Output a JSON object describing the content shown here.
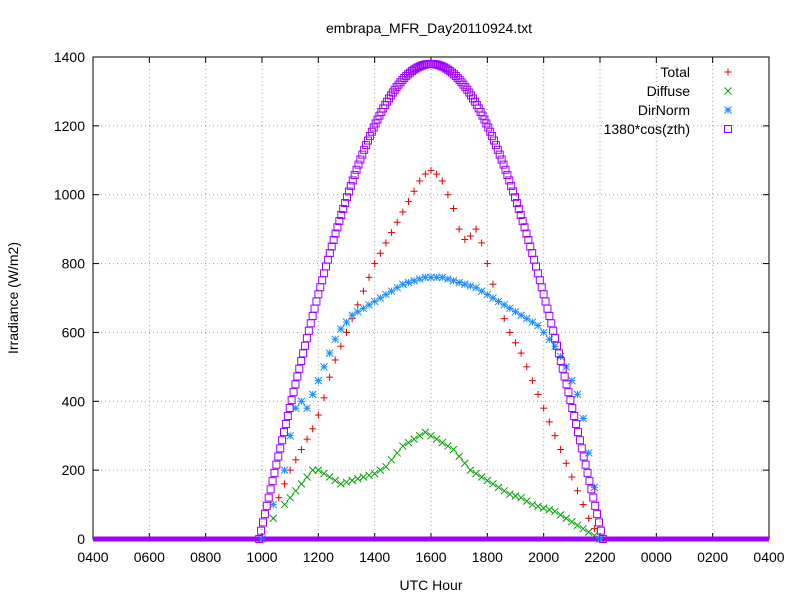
{
  "chart_data": {
    "type": "scatter",
    "title": "embrapa_MFR_Day20110924.txt",
    "xlabel": "UTC Hour",
    "ylabel": "Irradiance (W/m2)",
    "ylim": [
      0,
      1400
    ],
    "y_ticks": [
      0,
      200,
      400,
      600,
      800,
      1000,
      1200,
      1400
    ],
    "y_tick_labels": [
      "0",
      "200",
      "400",
      "600",
      "800",
      "1000",
      "1200",
      "1400"
    ],
    "x_ticks": [
      4,
      6,
      8,
      10,
      12,
      14,
      16,
      18,
      20,
      22,
      24,
      26,
      28
    ],
    "x_tick_labels": [
      "0400",
      "0600",
      "0800",
      "1000",
      "1200",
      "1400",
      "1600",
      "1800",
      "2000",
      "2200",
      "0000",
      "0200",
      "0400"
    ],
    "xlim": [
      4,
      28
    ],
    "grid": true,
    "legend_position": "top-right",
    "series": [
      {
        "name": "Total",
        "marker": "plus",
        "color": "#e00000",
        "x": [
          10.0,
          10.6,
          10.8,
          11.0,
          11.2,
          11.4,
          11.6,
          11.8,
          12.0,
          12.2,
          12.4,
          12.6,
          12.8,
          13.0,
          13.2,
          13.4,
          13.6,
          13.8,
          14.0,
          14.2,
          14.4,
          14.6,
          14.8,
          15.0,
          15.2,
          15.4,
          15.6,
          15.8,
          16.0,
          16.2,
          16.4,
          16.6,
          16.8,
          17.0,
          17.2,
          17.4,
          17.6,
          17.8,
          18.0,
          18.2,
          18.4,
          18.6,
          18.8,
          19.0,
          19.2,
          19.4,
          19.6,
          19.8,
          20.0,
          20.2,
          20.4,
          20.6,
          20.8,
          21.0,
          21.2,
          21.4,
          21.6,
          21.8,
          22.0
        ],
        "y": [
          0,
          120,
          160,
          200,
          230,
          260,
          290,
          320,
          360,
          410,
          470,
          520,
          560,
          600,
          640,
          680,
          720,
          760,
          800,
          830,
          860,
          890,
          920,
          950,
          980,
          1010,
          1040,
          1060,
          1070,
          1060,
          1040,
          1000,
          960,
          900,
          870,
          880,
          900,
          860,
          800,
          740,
          690,
          640,
          600,
          570,
          540,
          500,
          460,
          420,
          380,
          340,
          300,
          260,
          220,
          180,
          140,
          100,
          60,
          30,
          0
        ]
      },
      {
        "name": "Diffuse",
        "marker": "cross",
        "color": "#00a000",
        "x": [
          10.0,
          10.4,
          10.8,
          11.0,
          11.2,
          11.4,
          11.6,
          11.8,
          12.0,
          12.2,
          12.4,
          12.6,
          12.8,
          13.0,
          13.2,
          13.4,
          13.6,
          13.8,
          14.0,
          14.2,
          14.4,
          14.6,
          14.8,
          15.0,
          15.2,
          15.4,
          15.6,
          15.8,
          16.0,
          16.2,
          16.4,
          16.6,
          16.8,
          17.0,
          17.2,
          17.4,
          17.6,
          17.8,
          18.0,
          18.2,
          18.4,
          18.6,
          18.8,
          19.0,
          19.2,
          19.4,
          19.6,
          19.8,
          20.0,
          20.2,
          20.4,
          20.6,
          20.8,
          21.0,
          21.2,
          21.4,
          21.6,
          21.8,
          22.0
        ],
        "y": [
          0,
          60,
          100,
          120,
          140,
          160,
          180,
          200,
          200,
          190,
          180,
          170,
          160,
          165,
          170,
          175,
          180,
          185,
          190,
          200,
          210,
          230,
          250,
          270,
          280,
          290,
          300,
          310,
          300,
          290,
          280,
          270,
          260,
          240,
          220,
          200,
          190,
          180,
          170,
          160,
          150,
          140,
          130,
          125,
          120,
          110,
          100,
          95,
          90,
          85,
          80,
          70,
          60,
          50,
          40,
          30,
          20,
          10,
          0
        ]
      },
      {
        "name": "DirNorm",
        "marker": "star",
        "color": "#1a8cff",
        "x": [
          10.0,
          10.4,
          10.8,
          11.0,
          11.2,
          11.4,
          11.6,
          11.8,
          12.0,
          12.2,
          12.4,
          12.6,
          12.8,
          13.0,
          13.2,
          13.4,
          13.6,
          13.8,
          14.0,
          14.2,
          14.4,
          14.6,
          14.8,
          15.0,
          15.2,
          15.4,
          15.6,
          15.8,
          16.0,
          16.2,
          16.4,
          16.6,
          16.8,
          17.0,
          17.2,
          17.4,
          17.6,
          17.8,
          18.0,
          18.2,
          18.4,
          18.6,
          18.8,
          19.0,
          19.2,
          19.4,
          19.6,
          19.8,
          20.0,
          20.2,
          20.4,
          20.6,
          20.8,
          21.0,
          21.2,
          21.4,
          21.6,
          21.8,
          22.0
        ],
        "y": [
          0,
          100,
          200,
          300,
          380,
          400,
          380,
          420,
          460,
          500,
          540,
          580,
          610,
          630,
          650,
          660,
          670,
          680,
          690,
          700,
          710,
          720,
          730,
          740,
          745,
          750,
          755,
          760,
          760,
          760,
          760,
          755,
          750,
          745,
          740,
          735,
          730,
          720,
          710,
          700,
          690,
          680,
          670,
          660,
          650,
          640,
          630,
          620,
          600,
          580,
          560,
          530,
          500,
          460,
          420,
          350,
          250,
          150,
          0
        ]
      },
      {
        "name": "1380*cos(zth)",
        "marker": "square",
        "color": "#a000ff",
        "peak_x": 16.0,
        "peak_y": 1380,
        "x_start": 9.9,
        "x_end": 22.1
      }
    ]
  }
}
